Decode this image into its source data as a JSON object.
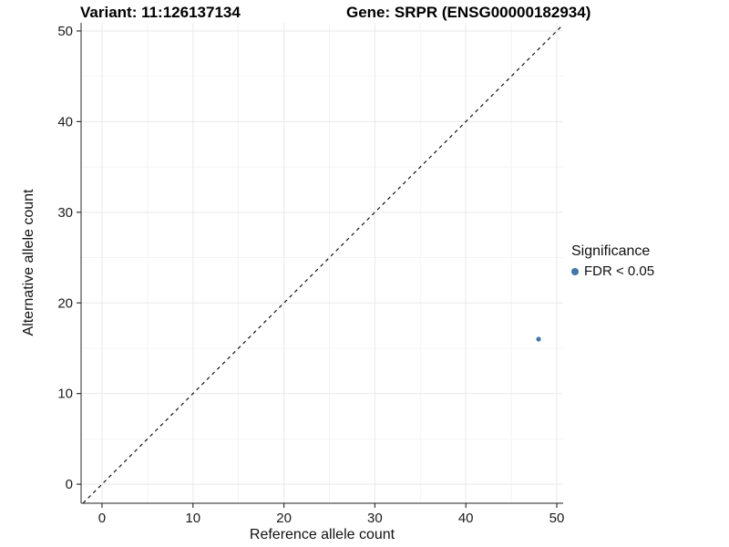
{
  "titles": {
    "variant": "Variant: 11:126137134",
    "gene": "Gene: SRPR (ENSG00000182934)"
  },
  "legend": {
    "title": "Significance",
    "items": [
      {
        "label": "FDR < 0.05",
        "color": "#4277a8"
      }
    ]
  },
  "chart_data": {
    "type": "scatter",
    "title": "Variant: 11:126137134 — Gene: SRPR (ENSG00000182934)",
    "xlabel": "Reference allele count",
    "ylabel": "Alternative allele count",
    "xlim": [
      -2.3,
      50.7
    ],
    "ylim": [
      -2.1,
      50.9
    ],
    "x_ticks": [
      0,
      10,
      20,
      30,
      40,
      50
    ],
    "y_ticks": [
      0,
      10,
      20,
      30,
      40,
      50
    ],
    "x_minor_ticks": [
      5,
      15,
      25,
      35,
      45
    ],
    "y_minor_ticks": [
      5,
      15,
      25,
      35,
      45
    ],
    "grid": true,
    "legend_position": "right",
    "identity_line": {
      "style": "dashed",
      "color": "#000000"
    },
    "series": [
      {
        "name": "FDR < 0.05",
        "color": "#4277a8",
        "point_radius": 2.6,
        "points": [
          {
            "x": 48,
            "y": 16
          }
        ]
      }
    ],
    "style": {
      "grid_major_color": "#e9e9e9",
      "grid_minor_color": "#f4f4f4",
      "axis_line_color": "#4d4d4d",
      "tick_color": "#333333",
      "tick_label_color": "#1a1a1a",
      "tick_label_size": 15,
      "tick_length": 5
    }
  }
}
